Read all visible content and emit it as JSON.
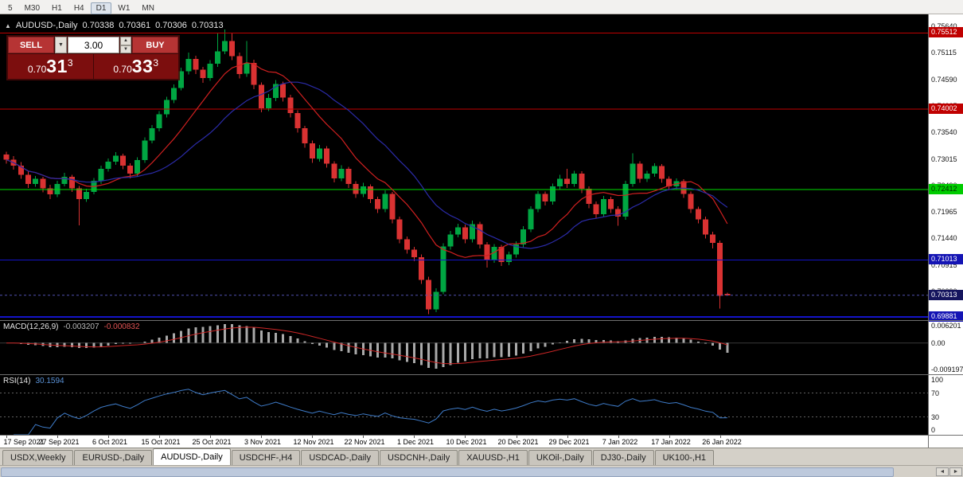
{
  "toolbar": {
    "timeframes": [
      "5",
      "M30",
      "H1",
      "H4",
      "D1",
      "W1",
      "MN"
    ],
    "active": "D1"
  },
  "chart_header": {
    "collapse_icon": "▲",
    "symbol_period": "AUDUSD-,Daily",
    "open": "0.70338",
    "high": "0.70361",
    "low": "0.70306",
    "close": "0.70313"
  },
  "trade_panel": {
    "sell_label": "SELL",
    "buy_label": "BUY",
    "volume": "3.00",
    "dropdown_icon": "▼",
    "spin_up_icon": "▲",
    "spin_down_icon": "▼",
    "sell_price": {
      "prefix": "0.70",
      "big": "31",
      "sup": "3"
    },
    "buy_price": {
      "prefix": "0.70",
      "big": "33",
      "sup": "3"
    }
  },
  "indicators": {
    "macd_name": "MACD(12,26,9)",
    "macd_main": "-0.003207",
    "macd_signal": "-0.000832",
    "rsi_name": "RSI(14)",
    "rsi_value": "30.1594"
  },
  "tabs": {
    "active_index": 2,
    "items": [
      "USDX,Weekly",
      "EURUSD-,Daily",
      "AUDUSD-,Daily",
      "USDCHF-,H4",
      "USDCAD-,Daily",
      "USDCNH-,Daily",
      "XAUUSD-,H1",
      "UKOil-,Daily",
      "DJ30-,Daily",
      "UK100-,H1"
    ]
  },
  "scrollbar": {
    "left_arrow": "◄",
    "right_arrow": "►"
  },
  "chart_data": {
    "type": "candlestick",
    "symbol": "AUDUSD-",
    "timeframe": "Daily",
    "y_range": {
      "min": 0.6982,
      "max": 0.7588
    },
    "up_color": "#00A642",
    "down_color": "#D93232",
    "price_ticks": [
      "0.75640",
      "0.75115",
      "0.74590",
      "0.74065",
      "0.73540",
      "0.73015",
      "0.72490",
      "0.71965",
      "0.71440",
      "0.70915",
      "0.70390"
    ],
    "x_labels": [
      "17 Sep 2021",
      "27 Sep 2021",
      "6 Oct 2021",
      "15 Oct 2021",
      "25 Oct 2021",
      "3 Nov 2021",
      "12 Nov 2021",
      "22 Nov 2021",
      "1 Dec 2021",
      "10 Dec 2021",
      "20 Dec 2021",
      "29 Dec 2021",
      "7 Jan 2022",
      "17 Jan 2022",
      "26 Jan 2022"
    ],
    "x_label_step": 7,
    "levels": [
      {
        "value": 0.75512,
        "label": "0.75512",
        "color": "#c00000",
        "label_bg": "#c00000",
        "label_color": "#ffffff",
        "width": 1
      },
      {
        "value": 0.74002,
        "label": "0.74002",
        "color": "#c00000",
        "label_bg": "#c00000",
        "label_color": "#ffffff",
        "width": 1
      },
      {
        "value": 0.72412,
        "label": "0.72412",
        "color": "#00dd00",
        "label_bg": "#00cc00",
        "label_color": "#002b00",
        "width": 1
      },
      {
        "value": 0.71013,
        "label": "0.71013",
        "color": "#1414c8",
        "label_bg": "#1414b4",
        "label_color": "#ffffff",
        "width": 1
      },
      {
        "value": 0.69881,
        "label": "0.69881",
        "color": "#1414c8",
        "label_bg": "#1414b4",
        "label_color": "#ffffff",
        "width": 2
      }
    ],
    "current_price": {
      "value": 0.70313,
      "label": "0.70313",
      "color": "#5050b0",
      "label_bg": "#15155e"
    },
    "moving_averages": [
      {
        "name": "ma-fast",
        "period": 10,
        "color": "#d02020"
      },
      {
        "name": "ma-slow",
        "period": 20,
        "color": "#2b2ba8"
      }
    ],
    "macd": {
      "name": "MACD(12,26,9)",
      "main_value": -0.003207,
      "signal_value": -0.000832,
      "range": {
        "min": -0.0102,
        "max": 0.0072
      },
      "axis_labels": [
        {
          "text": "0.006201",
          "value": 0.006201
        },
        {
          "text": "0.00",
          "value": 0
        },
        {
          "text": "-0.009197",
          "value": -0.009197
        }
      ],
      "histogram_color": "#a9a9a9",
      "signal_color": "#cc2626"
    },
    "rsi": {
      "period": 14,
      "value": 30.1594,
      "color": "#3E7BC8",
      "levels": [
        70,
        30
      ],
      "axis_labels": [
        100,
        70,
        30,
        0
      ]
    },
    "candles": [
      [
        0.731,
        0.7316,
        0.7292,
        0.73
      ],
      [
        0.73,
        0.7307,
        0.728,
        0.7288
      ],
      [
        0.7288,
        0.7295,
        0.7262,
        0.727
      ],
      [
        0.727,
        0.7276,
        0.7244,
        0.7252
      ],
      [
        0.7252,
        0.7268,
        0.7246,
        0.7262
      ],
      [
        0.7262,
        0.7266,
        0.7235,
        0.7243
      ],
      [
        0.7243,
        0.725,
        0.7222,
        0.7231
      ],
      [
        0.7231,
        0.7258,
        0.7226,
        0.7252
      ],
      [
        0.7252,
        0.7274,
        0.7247,
        0.7266
      ],
      [
        0.7266,
        0.727,
        0.7236,
        0.7243
      ],
      [
        0.7243,
        0.7248,
        0.717,
        0.7222
      ],
      [
        0.7222,
        0.7242,
        0.7216,
        0.7236
      ],
      [
        0.7236,
        0.7264,
        0.7231,
        0.7258
      ],
      [
        0.7258,
        0.7288,
        0.7252,
        0.7282
      ],
      [
        0.7282,
        0.7302,
        0.7276,
        0.7296
      ],
      [
        0.7296,
        0.7315,
        0.729,
        0.7308
      ],
      [
        0.7308,
        0.7312,
        0.7281,
        0.7288
      ],
      [
        0.7288,
        0.7293,
        0.7263,
        0.7272
      ],
      [
        0.7272,
        0.7305,
        0.7266,
        0.7299
      ],
      [
        0.7299,
        0.7344,
        0.7294,
        0.7338
      ],
      [
        0.7338,
        0.7369,
        0.7332,
        0.7362
      ],
      [
        0.7362,
        0.7396,
        0.7356,
        0.739
      ],
      [
        0.739,
        0.7425,
        0.7384,
        0.7418
      ],
      [
        0.7418,
        0.7449,
        0.7412,
        0.7442
      ],
      [
        0.7442,
        0.7482,
        0.7437,
        0.7475
      ],
      [
        0.7475,
        0.7512,
        0.7469,
        0.75
      ],
      [
        0.75,
        0.7506,
        0.747,
        0.7478
      ],
      [
        0.7478,
        0.7484,
        0.7452,
        0.7462
      ],
      [
        0.7462,
        0.7497,
        0.7456,
        0.749
      ],
      [
        0.749,
        0.755,
        0.7484,
        0.7515
      ],
      [
        0.7515,
        0.7558,
        0.7509,
        0.7535
      ],
      [
        0.7535,
        0.7552,
        0.7497,
        0.7505
      ],
      [
        0.7505,
        0.7512,
        0.7461,
        0.747
      ],
      [
        0.747,
        0.7535,
        0.7464,
        0.7492
      ],
      [
        0.7492,
        0.7498,
        0.744,
        0.7448
      ],
      [
        0.7448,
        0.7453,
        0.7394,
        0.7402
      ],
      [
        0.7402,
        0.743,
        0.7396,
        0.7422
      ],
      [
        0.7422,
        0.7458,
        0.7416,
        0.745
      ],
      [
        0.745,
        0.7455,
        0.7415,
        0.7423
      ],
      [
        0.7423,
        0.7429,
        0.7384,
        0.7392
      ],
      [
        0.7392,
        0.7398,
        0.7354,
        0.7362
      ],
      [
        0.7362,
        0.7367,
        0.7324,
        0.7332
      ],
      [
        0.7332,
        0.7338,
        0.7294,
        0.7302
      ],
      [
        0.7302,
        0.7329,
        0.7296,
        0.7322
      ],
      [
        0.7322,
        0.7327,
        0.7284,
        0.7292
      ],
      [
        0.7292,
        0.7297,
        0.7255,
        0.7263
      ],
      [
        0.7263,
        0.7289,
        0.7257,
        0.7282
      ],
      [
        0.7282,
        0.7286,
        0.7244,
        0.7252
      ],
      [
        0.7252,
        0.7257,
        0.7224,
        0.7232
      ],
      [
        0.7232,
        0.7254,
        0.7226,
        0.7247
      ],
      [
        0.7247,
        0.7251,
        0.7214,
        0.7222
      ],
      [
        0.7222,
        0.7227,
        0.7194,
        0.7202
      ],
      [
        0.7202,
        0.7239,
        0.7196,
        0.7232
      ],
      [
        0.7232,
        0.7236,
        0.7174,
        0.7182
      ],
      [
        0.7182,
        0.7187,
        0.7134,
        0.7142
      ],
      [
        0.7142,
        0.7148,
        0.7114,
        0.7122
      ],
      [
        0.7122,
        0.7127,
        0.7099,
        0.7107
      ],
      [
        0.7107,
        0.7112,
        0.7054,
        0.7062
      ],
      [
        0.7062,
        0.7068,
        0.6994,
        0.7003
      ],
      [
        0.7003,
        0.7045,
        0.6998,
        0.7038
      ],
      [
        0.7038,
        0.7134,
        0.7033,
        0.7128
      ],
      [
        0.7128,
        0.7159,
        0.7122,
        0.7152
      ],
      [
        0.7152,
        0.7173,
        0.7146,
        0.7166
      ],
      [
        0.7166,
        0.7171,
        0.7134,
        0.7142
      ],
      [
        0.7142,
        0.7179,
        0.7136,
        0.7172
      ],
      [
        0.7172,
        0.7177,
        0.7124,
        0.7132
      ],
      [
        0.7132,
        0.7137,
        0.7086,
        0.7102
      ],
      [
        0.7102,
        0.7133,
        0.7096,
        0.7127
      ],
      [
        0.7127,
        0.7131,
        0.7089,
        0.7097
      ],
      [
        0.7097,
        0.7118,
        0.7091,
        0.7112
      ],
      [
        0.7112,
        0.7138,
        0.7106,
        0.7132
      ],
      [
        0.7132,
        0.7168,
        0.7126,
        0.7162
      ],
      [
        0.7162,
        0.7208,
        0.7156,
        0.7202
      ],
      [
        0.7202,
        0.7238,
        0.7196,
        0.7232
      ],
      [
        0.7232,
        0.7237,
        0.7209,
        0.7217
      ],
      [
        0.7217,
        0.7253,
        0.7211,
        0.7247
      ],
      [
        0.7247,
        0.727,
        0.7241,
        0.7262
      ],
      [
        0.7262,
        0.7282,
        0.7244,
        0.7252
      ],
      [
        0.7252,
        0.7278,
        0.7246,
        0.7272
      ],
      [
        0.7272,
        0.7277,
        0.7234,
        0.7242
      ],
      [
        0.7242,
        0.7247,
        0.7204,
        0.7212
      ],
      [
        0.7212,
        0.7217,
        0.7184,
        0.7192
      ],
      [
        0.7192,
        0.7228,
        0.7186,
        0.7222
      ],
      [
        0.7222,
        0.7227,
        0.7194,
        0.7202
      ],
      [
        0.7202,
        0.7208,
        0.7169,
        0.7187
      ],
      [
        0.7187,
        0.7258,
        0.7181,
        0.7252
      ],
      [
        0.7252,
        0.7313,
        0.7246,
        0.7292
      ],
      [
        0.7292,
        0.7297,
        0.7254,
        0.7262
      ],
      [
        0.7262,
        0.7278,
        0.7256,
        0.7272
      ],
      [
        0.7272,
        0.7293,
        0.7266,
        0.7287
      ],
      [
        0.7287,
        0.7291,
        0.7254,
        0.7262
      ],
      [
        0.7262,
        0.7267,
        0.7239,
        0.7247
      ],
      [
        0.7247,
        0.7263,
        0.7241,
        0.7257
      ],
      [
        0.7257,
        0.7261,
        0.7224,
        0.7232
      ],
      [
        0.7232,
        0.7237,
        0.7194,
        0.7202
      ],
      [
        0.7202,
        0.7207,
        0.7174,
        0.7182
      ],
      [
        0.7182,
        0.7187,
        0.7144,
        0.7152
      ],
      [
        0.7152,
        0.7157,
        0.7124,
        0.7135
      ],
      [
        0.7135,
        0.714,
        0.7005,
        0.703
      ],
      [
        0.70338,
        0.70361,
        0.70306,
        0.70313
      ]
    ]
  }
}
